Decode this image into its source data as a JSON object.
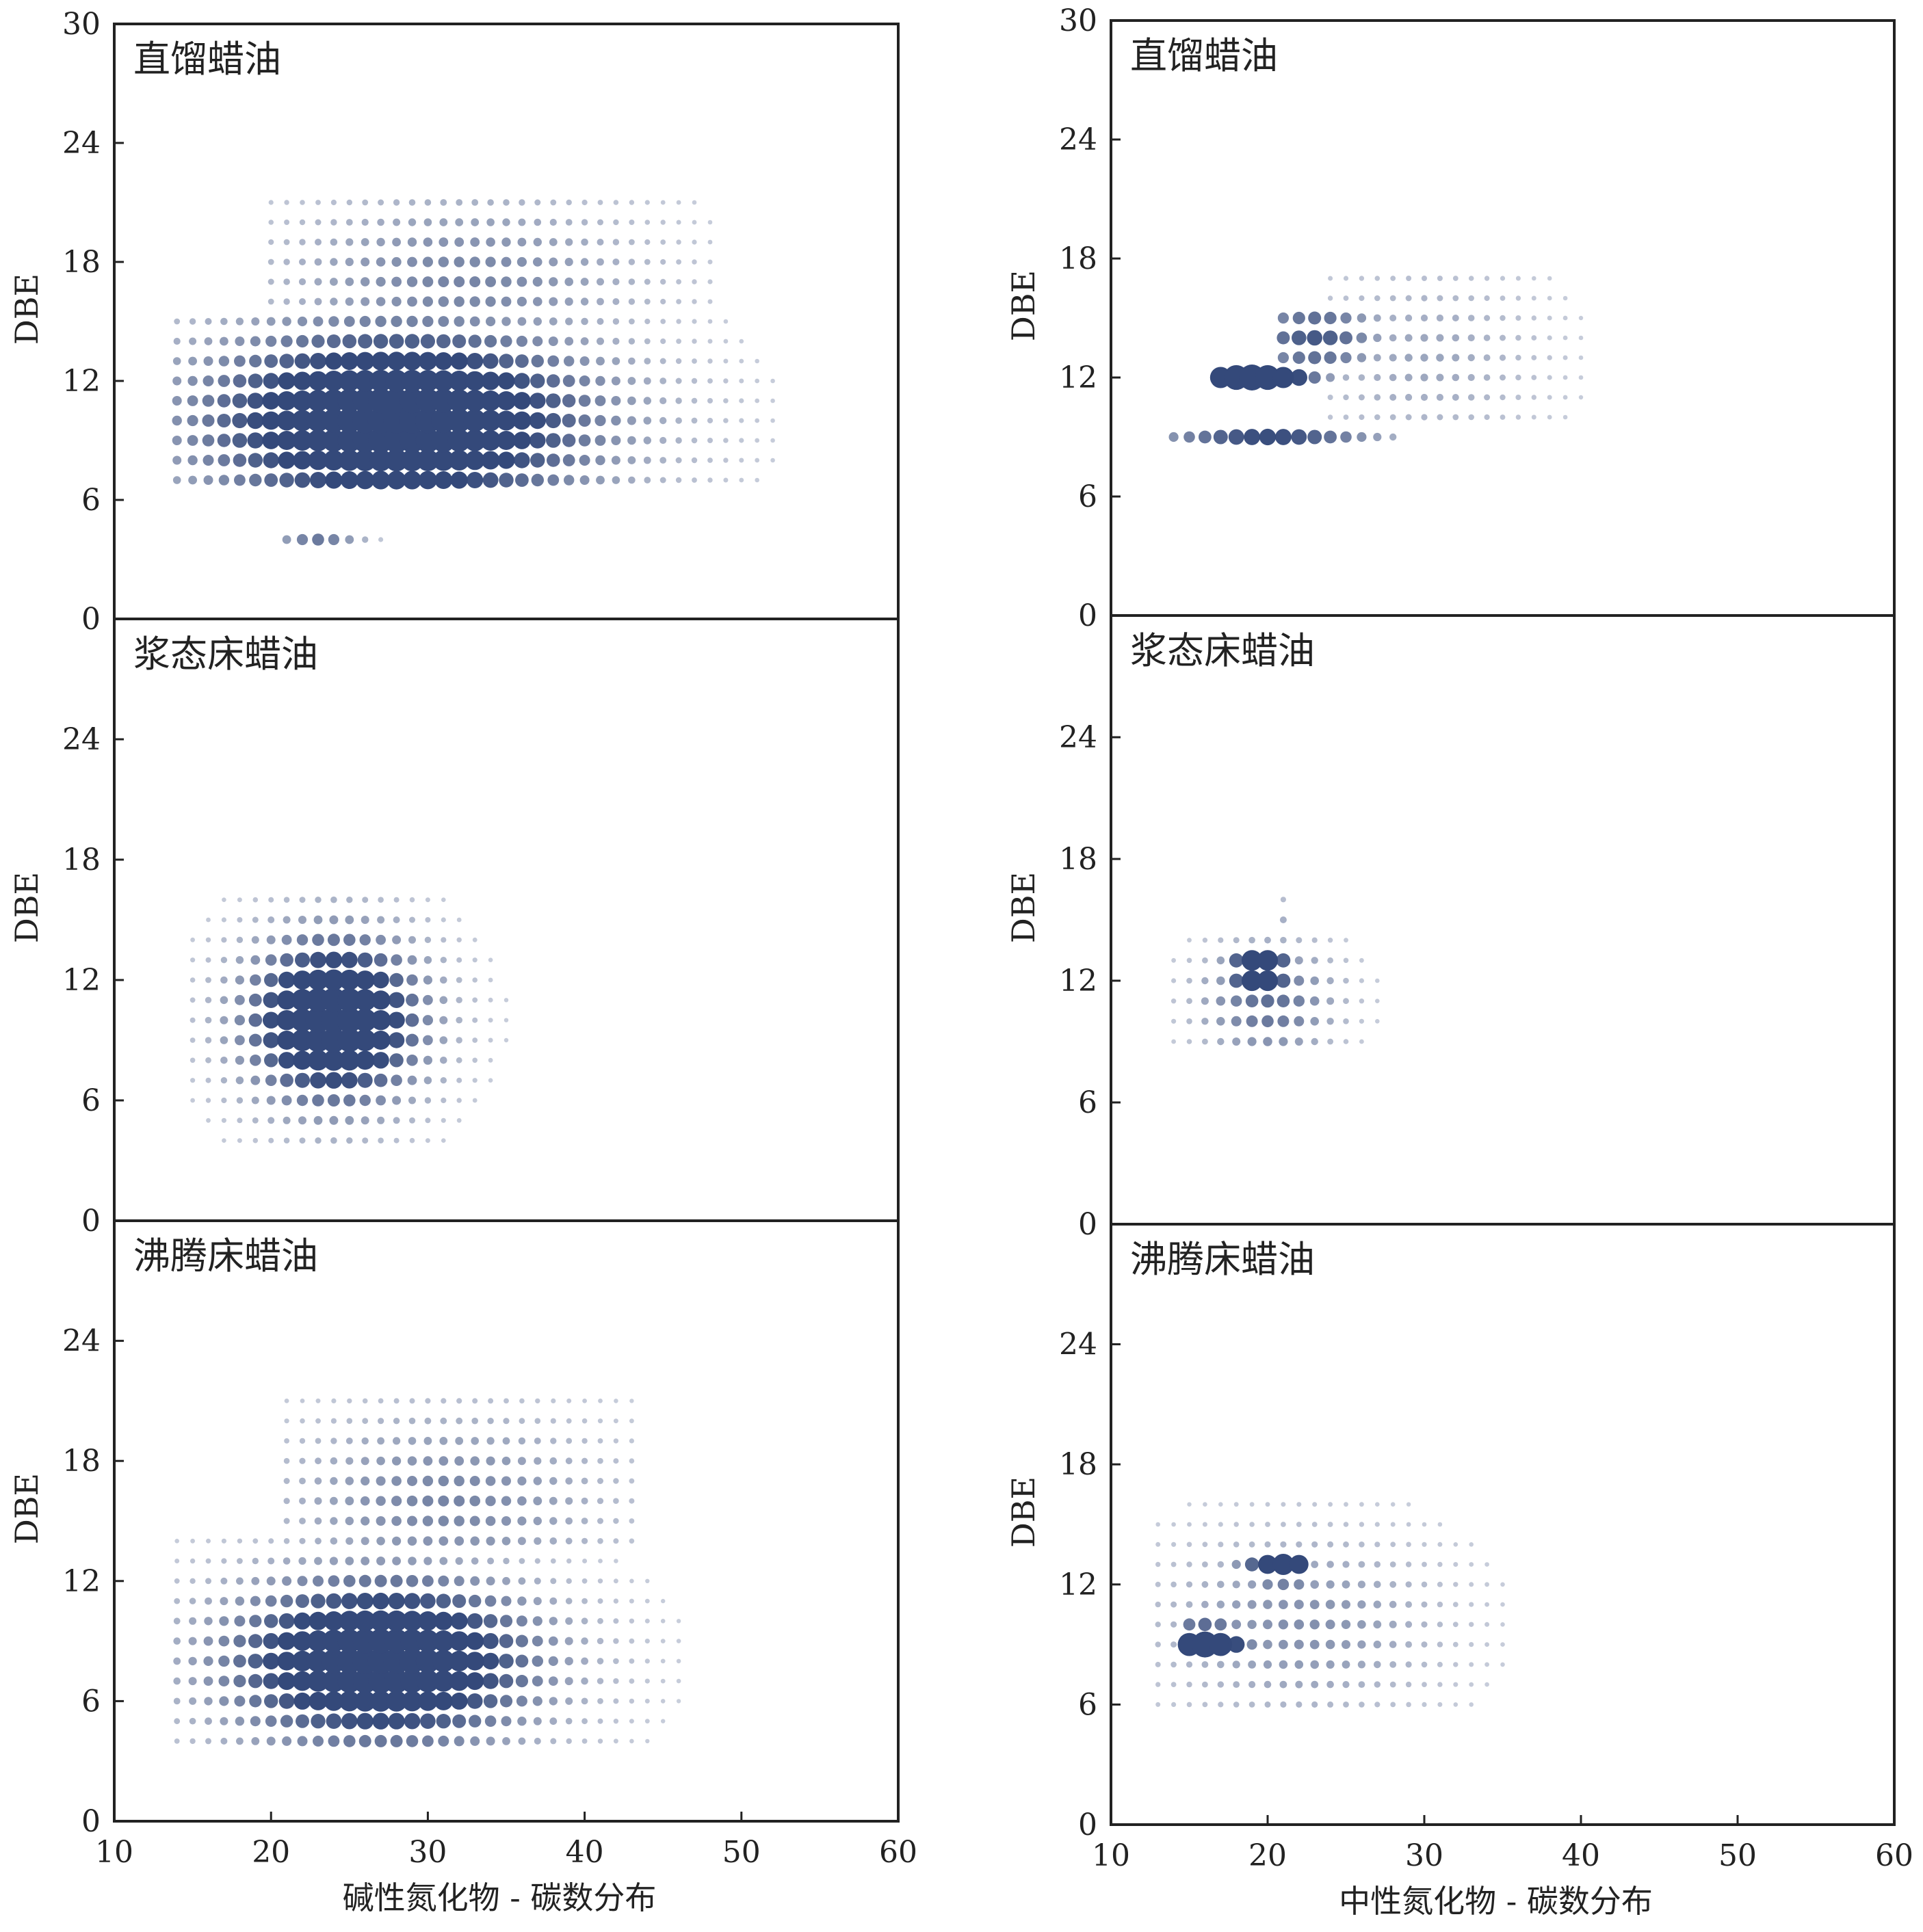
{
  "chart_data": [
    {
      "type": "scatter",
      "title": "直馏蜡油",
      "xlabel": "",
      "ylabel": "DBE",
      "xlim": [
        10,
        60
      ],
      "ylim": [
        0,
        30
      ],
      "xticks": [],
      "yticks": [
        0,
        6,
        12,
        18,
        24,
        30
      ],
      "ytick_labels": [
        "0",
        "6",
        "12",
        "18",
        "24",
        "30"
      ],
      "marker_color": "#34497a",
      "grid": false,
      "clusters": [
        {
          "x": [
            14,
            52
          ],
          "y": [
            7,
            15
          ],
          "peak": [
            28,
            10
          ],
          "spread": [
            9,
            3.5
          ],
          "amp": 1
        },
        {
          "x": [
            20,
            48
          ],
          "y": [
            15,
            21
          ],
          "peak": [
            32,
            17
          ],
          "spread": [
            8,
            3
          ],
          "amp": 0.35
        },
        {
          "x": [
            21,
            27
          ],
          "y": [
            4,
            4
          ],
          "peak": [
            23,
            4
          ],
          "spread": [
            2,
            1
          ],
          "amp": 0.4
        }
      ]
    },
    {
      "type": "scatter",
      "title": "浆态床蜡油",
      "xlabel": "",
      "ylabel": "DBE",
      "xlim": [
        10,
        60
      ],
      "ylim": [
        0,
        30
      ],
      "xticks": [],
      "yticks": [
        0,
        6,
        12,
        18,
        24
      ],
      "ytick_labels": [
        "0",
        "6",
        "12",
        "18",
        "24"
      ],
      "marker_color": "#34497a",
      "grid": false,
      "clusters": [
        {
          "x": [
            15,
            37
          ],
          "y": [
            4,
            16
          ],
          "peak": [
            24,
            10
          ],
          "spread": [
            4,
            3
          ],
          "amp": 1
        }
      ]
    },
    {
      "type": "scatter",
      "title": "沸腾床蜡油",
      "xlabel": "碱性氮化物 - 碳数分布",
      "ylabel": "DBE",
      "xlim": [
        10,
        60
      ],
      "ylim": [
        0,
        30
      ],
      "xticks": [
        10,
        20,
        30,
        40,
        50,
        60
      ],
      "xtick_labels": [
        "10",
        "20",
        "30",
        "40",
        "50",
        "60"
      ],
      "yticks": [
        0,
        6,
        12,
        18,
        24
      ],
      "ytick_labels": [
        "0",
        "6",
        "12",
        "18",
        "24"
      ],
      "marker_color": "#34497a",
      "grid": false,
      "clusters": [
        {
          "x": [
            14,
            48
          ],
          "y": [
            4,
            14
          ],
          "peak": [
            27,
            8
          ],
          "spread": [
            7,
            3
          ],
          "amp": 1
        },
        {
          "x": [
            21,
            43
          ],
          "y": [
            14,
            21
          ],
          "peak": [
            31,
            16
          ],
          "spread": [
            7,
            3
          ],
          "amp": 0.35
        }
      ]
    },
    {
      "type": "scatter",
      "title": "直馏蜡油",
      "xlabel": "",
      "ylabel": "DBE",
      "xlim": [
        10,
        60
      ],
      "ylim": [
        0,
        30
      ],
      "xticks": [],
      "yticks": [
        0,
        6,
        12,
        18,
        24,
        30
      ],
      "ytick_labels": [
        "0",
        "6",
        "12",
        "18",
        "24",
        "30"
      ],
      "marker_color": "#34497a",
      "grid": false,
      "clusters": [
        {
          "x": [
            17,
            29
          ],
          "y": [
            12,
            12
          ],
          "peak": [
            19,
            12
          ],
          "spread": [
            3,
            1
          ],
          "amp": 1
        },
        {
          "x": [
            14,
            28
          ],
          "y": [
            9,
            9
          ],
          "peak": [
            20,
            9
          ],
          "spread": [
            5,
            1
          ],
          "amp": 0.6
        },
        {
          "x": [
            21,
            29
          ],
          "y": [
            13,
            15
          ],
          "peak": [
            23,
            14
          ],
          "spread": [
            3,
            1.5
          ],
          "amp": 0.55
        },
        {
          "x": [
            24,
            40
          ],
          "y": [
            10,
            17
          ],
          "peak": [
            30,
            13
          ],
          "spread": [
            5,
            3
          ],
          "amp": 0.2
        }
      ]
    },
    {
      "type": "scatter",
      "title": "浆态床蜡油",
      "xlabel": "",
      "ylabel": "DBE",
      "xlim": [
        10,
        60
      ],
      "ylim": [
        0,
        30
      ],
      "xticks": [],
      "yticks": [
        0,
        6,
        12,
        18,
        24
      ],
      "ytick_labels": [
        "0",
        "6",
        "12",
        "18",
        "24"
      ],
      "marker_color": "#34497a",
      "grid": false,
      "clusters": [
        {
          "x": [
            17,
            21
          ],
          "y": [
            12,
            13
          ],
          "peak": [
            19.5,
            12.5
          ],
          "spread": [
            1.5,
            0.8
          ],
          "amp": 1
        },
        {
          "x": [
            14,
            27
          ],
          "y": [
            9,
            14
          ],
          "peak": [
            20,
            11
          ],
          "spread": [
            3,
            2
          ],
          "amp": 0.45
        },
        {
          "x": [
            21,
            21
          ],
          "y": [
            15,
            16
          ],
          "peak": [
            21,
            15
          ],
          "spread": [
            1,
            1
          ],
          "amp": 0.15
        }
      ]
    },
    {
      "type": "scatter",
      "title": "沸腾床蜡油",
      "xlabel": "中性氮化物 - 碳数分布",
      "ylabel": "DBE",
      "xlim": [
        10,
        60
      ],
      "ylim": [
        0,
        30
      ],
      "xticks": [
        10,
        20,
        30,
        40,
        50,
        60
      ],
      "xtick_labels": [
        "10",
        "20",
        "30",
        "40",
        "50",
        "60"
      ],
      "yticks": [
        0,
        6,
        12,
        18,
        24
      ],
      "ytick_labels": [
        "0",
        "6",
        "12",
        "18",
        "24"
      ],
      "marker_color": "#34497a",
      "grid": false,
      "clusters": [
        {
          "x": [
            15,
            21
          ],
          "y": [
            9,
            10
          ],
          "peak": [
            16,
            9
          ],
          "spread": [
            2,
            0.8
          ],
          "amp": 1
        },
        {
          "x": [
            17,
            22
          ],
          "y": [
            12,
            13
          ],
          "peak": [
            21,
            13
          ],
          "spread": [
            2,
            0.8
          ],
          "amp": 0.8
        },
        {
          "x": [
            13,
            37
          ],
          "y": [
            6,
            17
          ],
          "peak": [
            22,
            10
          ],
          "spread": [
            6,
            3
          ],
          "amp": 0.3
        }
      ]
    }
  ]
}
